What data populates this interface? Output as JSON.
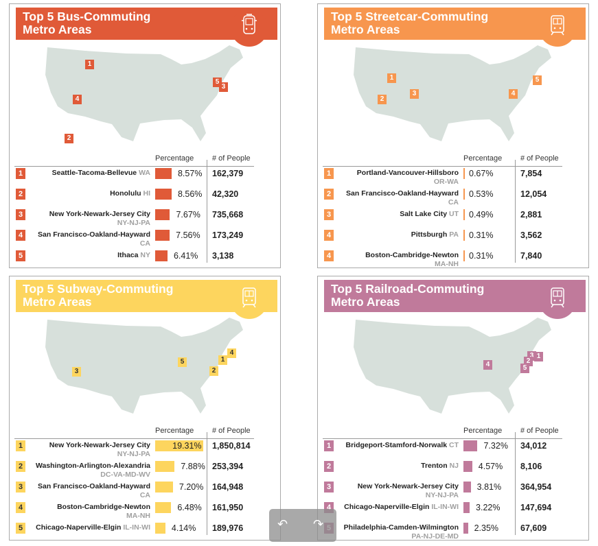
{
  "panels": [
    {
      "id": "bus",
      "title_line1": "Top 5 Bus-Commuting",
      "title_line2": "Metro Areas",
      "color": "#e05a38",
      "icon": "bus-icon",
      "col_percentage": "Percentage",
      "col_people": "# of People",
      "markers": [
        "1",
        "5",
        "3",
        "4",
        "2"
      ],
      "rows": [
        {
          "rank": "1",
          "name": "Seattle-Tacoma-Bellevue",
          "state": "WA",
          "state_newline": false,
          "pct": 8.57,
          "pct_label": "8.57%",
          "people": "162,379"
        },
        {
          "rank": "2",
          "name": "Honolulu",
          "state": "HI",
          "state_newline": false,
          "pct": 8.56,
          "pct_label": "8.56%",
          "people": "42,320"
        },
        {
          "rank": "3",
          "name": "New York-Newark-Jersey City",
          "state": "NY-NJ-PA",
          "state_newline": true,
          "pct": 7.67,
          "pct_label": "7.67%",
          "people": "735,668"
        },
        {
          "rank": "4",
          "name": "San Francisco-Oakland-Hayward",
          "state": "CA",
          "state_newline": true,
          "pct": 7.56,
          "pct_label": "7.56%",
          "people": "173,249"
        },
        {
          "rank": "5",
          "name": "Ithaca",
          "state": "NY",
          "state_newline": false,
          "pct": 6.41,
          "pct_label": "6.41%",
          "people": "3,138"
        }
      ]
    },
    {
      "id": "streetcar",
      "title_line1": "Top 5 Streetcar-Commuting",
      "title_line2": "Metro Areas",
      "color": "#f7964e",
      "icon": "streetcar-icon",
      "col_percentage": "Percentage",
      "col_people": "# of People",
      "markers": [
        "1",
        "5",
        "3",
        "4",
        "2"
      ],
      "rows": [
        {
          "rank": "1",
          "name": "Portland-Vancouver-Hillsboro",
          "state": "OR-WA",
          "state_newline": true,
          "pct": 0.67,
          "pct_label": "0.67%",
          "people": "7,854"
        },
        {
          "rank": "2",
          "name": "San Francisco-Oakland-Hayward",
          "state": "CA",
          "state_newline": true,
          "pct": 0.53,
          "pct_label": "0.53%",
          "people": "12,054"
        },
        {
          "rank": "3",
          "name": "Salt Lake City",
          "state": "UT",
          "state_newline": false,
          "pct": 0.49,
          "pct_label": "0.49%",
          "people": "2,881"
        },
        {
          "rank": "4",
          "name": "Pittsburgh",
          "state": "PA",
          "state_newline": false,
          "pct": 0.31,
          "pct_label": "0.31%",
          "people": "3,562"
        },
        {
          "rank": "4",
          "name": "Boston-Cambridge-Newton",
          "state": "MA-NH",
          "state_newline": true,
          "pct": 0.31,
          "pct_label": "0.31%",
          "people": "7,840"
        }
      ]
    },
    {
      "id": "subway",
      "title_line1": "Top 5 Subway-Commuting",
      "title_line2": "Metro Areas",
      "color": "#fdd55e",
      "icon": "subway-icon",
      "col_percentage": "Percentage",
      "col_people": "# of People",
      "markers": [
        "4",
        "5",
        "1",
        "3",
        "2"
      ],
      "rows": [
        {
          "rank": "1",
          "name": "New York-Newark-Jersey City",
          "state": "NY-NJ-PA",
          "state_newline": true,
          "pct": 19.31,
          "pct_label": "19.31%",
          "people": "1,850,814"
        },
        {
          "rank": "2",
          "name": "Washington-Arlington-Alexandria",
          "state": "DC-VA-MD-WV",
          "state_newline": true,
          "pct": 7.88,
          "pct_label": "7.88%",
          "people": "253,394"
        },
        {
          "rank": "3",
          "name": "San Francisco-Oakland-Hayward",
          "state": "CA",
          "state_newline": true,
          "pct": 7.2,
          "pct_label": "7.20%",
          "people": "164,948"
        },
        {
          "rank": "4",
          "name": "Boston-Cambridge-Newton",
          "state": "MA-NH",
          "state_newline": true,
          "pct": 6.48,
          "pct_label": "6.48%",
          "people": "161,950"
        },
        {
          "rank": "5",
          "name": "Chicago-Naperville-Elgin",
          "state": "IL-IN-WI",
          "state_newline": false,
          "pct": 4.14,
          "pct_label": "4.14%",
          "people": "189,976"
        }
      ]
    },
    {
      "id": "railroad",
      "title_line1": "Top 5 Railroad-Commuting",
      "title_line2": "Metro Areas",
      "color": "#c07a9b",
      "icon": "railroad-icon",
      "col_percentage": "Percentage",
      "col_people": "# of People",
      "markers": [
        "3",
        "1",
        "2",
        "4",
        "5"
      ],
      "rows": [
        {
          "rank": "1",
          "name": "Bridgeport-Stamford-Norwalk",
          "state": "CT",
          "state_newline": false,
          "pct": 7.32,
          "pct_label": "7.32%",
          "people": "34,012"
        },
        {
          "rank": "2",
          "name": "Trenton",
          "state": "NJ",
          "state_newline": false,
          "pct": 4.57,
          "pct_label": "4.57%",
          "people": "8,106"
        },
        {
          "rank": "3",
          "name": "New York-Newark-Jersey City",
          "state": "NY-NJ-PA",
          "state_newline": true,
          "pct": 3.81,
          "pct_label": "3.81%",
          "people": "364,954"
        },
        {
          "rank": "4",
          "name": "Chicago-Naperville-Elgin",
          "state": "IL-IN-WI",
          "state_newline": false,
          "pct": 3.22,
          "pct_label": "3.22%",
          "people": "147,694"
        },
        {
          "rank": "5",
          "name": "Philadelphia-Camden-Wilmington",
          "state": "PA-NJ-DE-MD",
          "state_newline": true,
          "pct": 2.35,
          "pct_label": "2.35%",
          "people": "67,609"
        }
      ]
    }
  ],
  "nav": {
    "undo_icon": "undo-arrow-icon",
    "redo_icon": "redo-arrow-icon",
    "undo_glyph": "↶",
    "redo_glyph": "↷"
  }
}
